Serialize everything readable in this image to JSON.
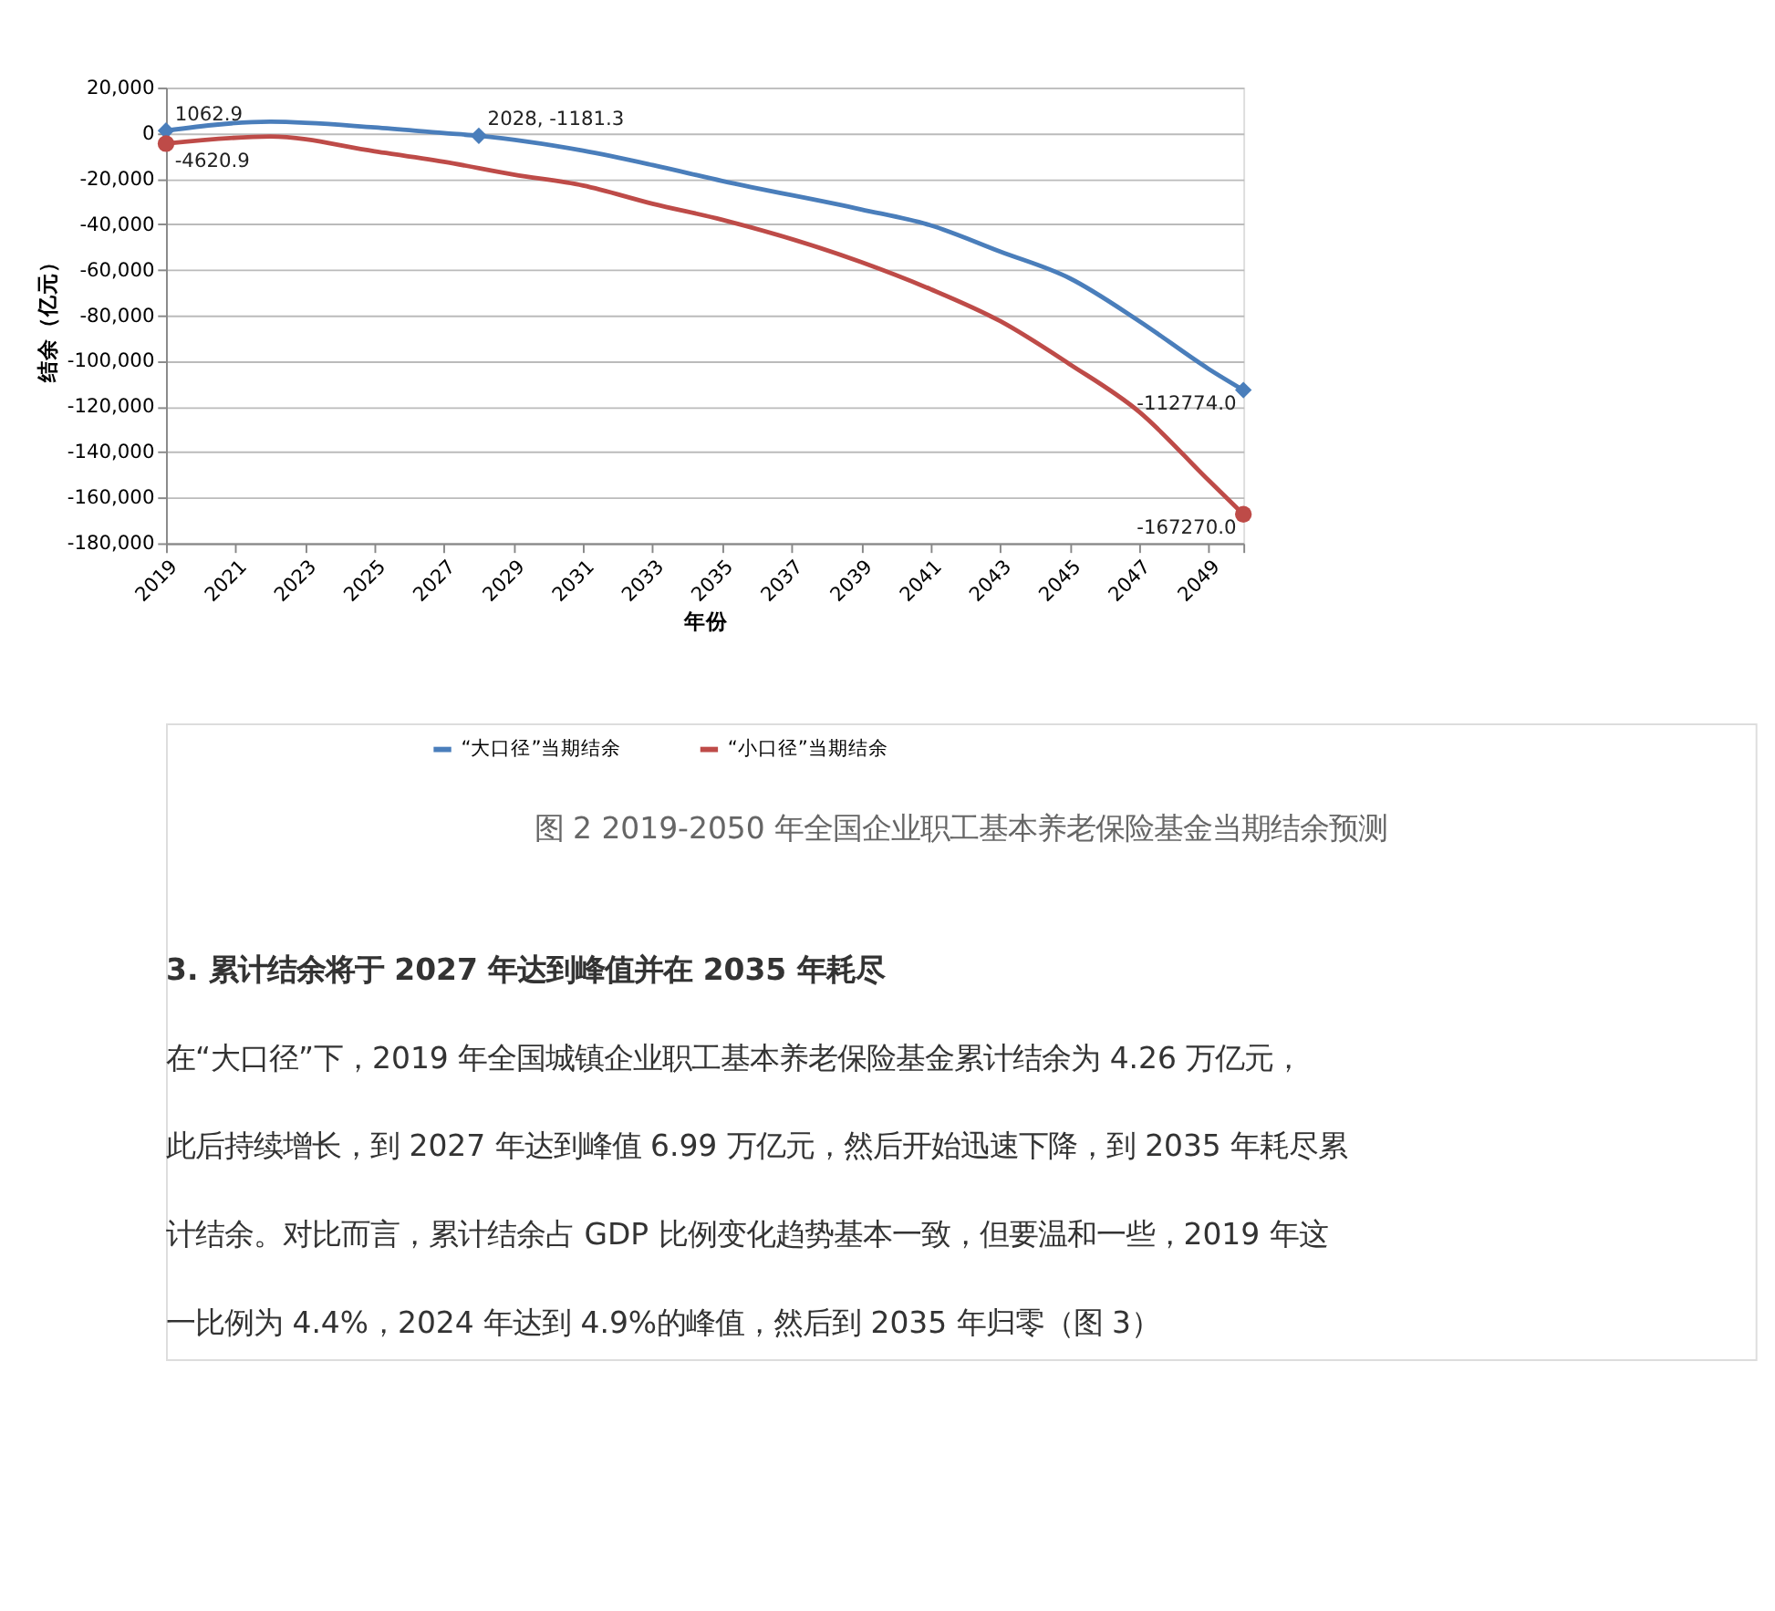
{
  "chart_data": {
    "type": "line",
    "xlabel": "年份",
    "ylabel": "结余（亿元）",
    "xlim": [
      2019,
      2050
    ],
    "xticks": [
      2019,
      2021,
      2023,
      2025,
      2027,
      2029,
      2031,
      2033,
      2035,
      2037,
      2039,
      2041,
      2043,
      2045,
      2047,
      2049,
      {
        "value": 2050,
        "label": null
      }
    ],
    "ylim": [
      -180000,
      20000
    ],
    "yticks": [
      {
        "value": -180000,
        "label": "-180,000"
      },
      {
        "value": -160000,
        "label": "-160,000"
      },
      {
        "value": -140000,
        "label": "-140,000"
      },
      {
        "value": -120000,
        "label": "-120,000"
      },
      {
        "value": -100000,
        "label": "-100,000"
      },
      {
        "value": -80000,
        "label": "-80,000"
      },
      {
        "value": -60000,
        "label": "-60,000"
      },
      {
        "value": -40000,
        "label": "-40,000"
      },
      {
        "value": -20000,
        "label": "-20,000"
      },
      0,
      {
        "value": 20000,
        "label": "20,000"
      }
    ],
    "grid": "y",
    "legend": "bottom",
    "marker": "none",
    "line_style": "solid",
    "series": [
      {
        "name": "“大口径”当期结余",
        "color": "#4a7ebb",
        "x": [
          2019,
          2022,
          2025,
          2027,
          2028,
          2031,
          2033,
          2035,
          2039,
          2041,
          2043,
          2045,
          2047,
          2049,
          2050
        ],
        "values": [
          1062.9,
          5000,
          2500,
          0,
          -1181.3,
          -7700,
          -14000,
          -21000,
          -33500,
          -40500,
          -52000,
          -63700,
          -82500,
          -103500,
          -112774.0
        ]
      },
      {
        "name": "“小口径”当期结余",
        "color": "#be4b48",
        "x": [
          2019,
          2022,
          2025,
          2027,
          2029,
          2031,
          2033,
          2035,
          2039,
          2041,
          2043,
          2045,
          2047,
          2049,
          2050
        ],
        "values": [
          -4620.9,
          -1500,
          -8000,
          -12600,
          -18200,
          -23000,
          -31000,
          -38000,
          -56600,
          -68500,
          -82500,
          -101400,
          -122300,
          -152400,
          -167270.0
        ]
      },
      {
        "type": "scatter",
        "marker": "diamond",
        "color": "#4a7ebb",
        "x": [
          2019,
          2028,
          2050
        ],
        "values": [
          1062.9,
          -1181.3,
          -112774.0
        ]
      },
      {
        "type": "scatter",
        "marker": "circle",
        "color": "#be4b48",
        "x": [
          2019,
          2050
        ],
        "values": [
          -4620.9,
          -167270.0
        ]
      }
    ],
    "annotations": [
      {
        "text": "1062.9",
        "x": 2019,
        "y": 1062.9
      },
      {
        "text": "-4620.9",
        "x": 2019,
        "y": -4620.9
      },
      {
        "text": "2028, -1181.3",
        "x": 2028,
        "y": -1181.3
      },
      {
        "text": "-112774.0",
        "x": 2050,
        "y": -112774.0
      },
      {
        "text": "-167270.0",
        "x": 2050,
        "y": -167270.0
      },
      "图 2 2019-2050 年全国企业职工基本养老保险基金当期结余预测",
      "3. 累计结余将于 2027 年达到峰值并在 2035 年耗尽",
      "在“大口径”下，2019 年全国城镇企业职工基本养老保险基金累计结余为 4.26 万亿元，",
      "此后持续增长，到 2027 年达到峰值 6.99 万亿元，然后开始迅速下降，到 2035 年耗尽累",
      "计结余。对比而言，累计结余占 GDP 比例变化趋势基本一致，但要温和一些，2019 年这",
      "一比例为 4.4%，2024 年达到 4.9%的峰值，然后到 2035 年归零（图 3）"
    ]
  }
}
